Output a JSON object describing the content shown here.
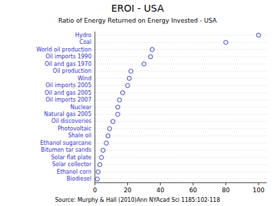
{
  "chart_data": {
    "type": "dot",
    "orientation": "horizontal",
    "title": "EROI - USA",
    "subtitle": "Ratio of Energy Returned on Energy Invested - USA",
    "source": "Source: Murphy & Hall (2010)Ann NYAcad Sci 1185:102-118",
    "categories": [
      "Hydro",
      "Coal",
      "World oil production",
      "Oil imports 1990",
      "Oil and gas 1970",
      "Oil production",
      "Wind",
      "Oil imports 2005",
      "Oil and gas 2005",
      "Oil imports 2007",
      "Nuclear",
      "Natural gas 2005",
      "Oil discoveries",
      "Photovoltaic",
      "Shale oil",
      "Ethanol sugarcane",
      "Bitumen tar sands",
      "Solar flat plate",
      "Solar collector",
      "Ethanol corn",
      "Biodiesel"
    ],
    "values": [
      100,
      80,
      35,
      34,
      30,
      22,
      21,
      20,
      17,
      15,
      14,
      14,
      11,
      9,
      8,
      7,
      5,
      4,
      3,
      2,
      1.5
    ],
    "color": "#3333cc",
    "marker": "open-circle",
    "xlim": [
      0,
      105
    ],
    "xticks": [
      0,
      20,
      40,
      60,
      80,
      100
    ],
    "grid": true
  }
}
